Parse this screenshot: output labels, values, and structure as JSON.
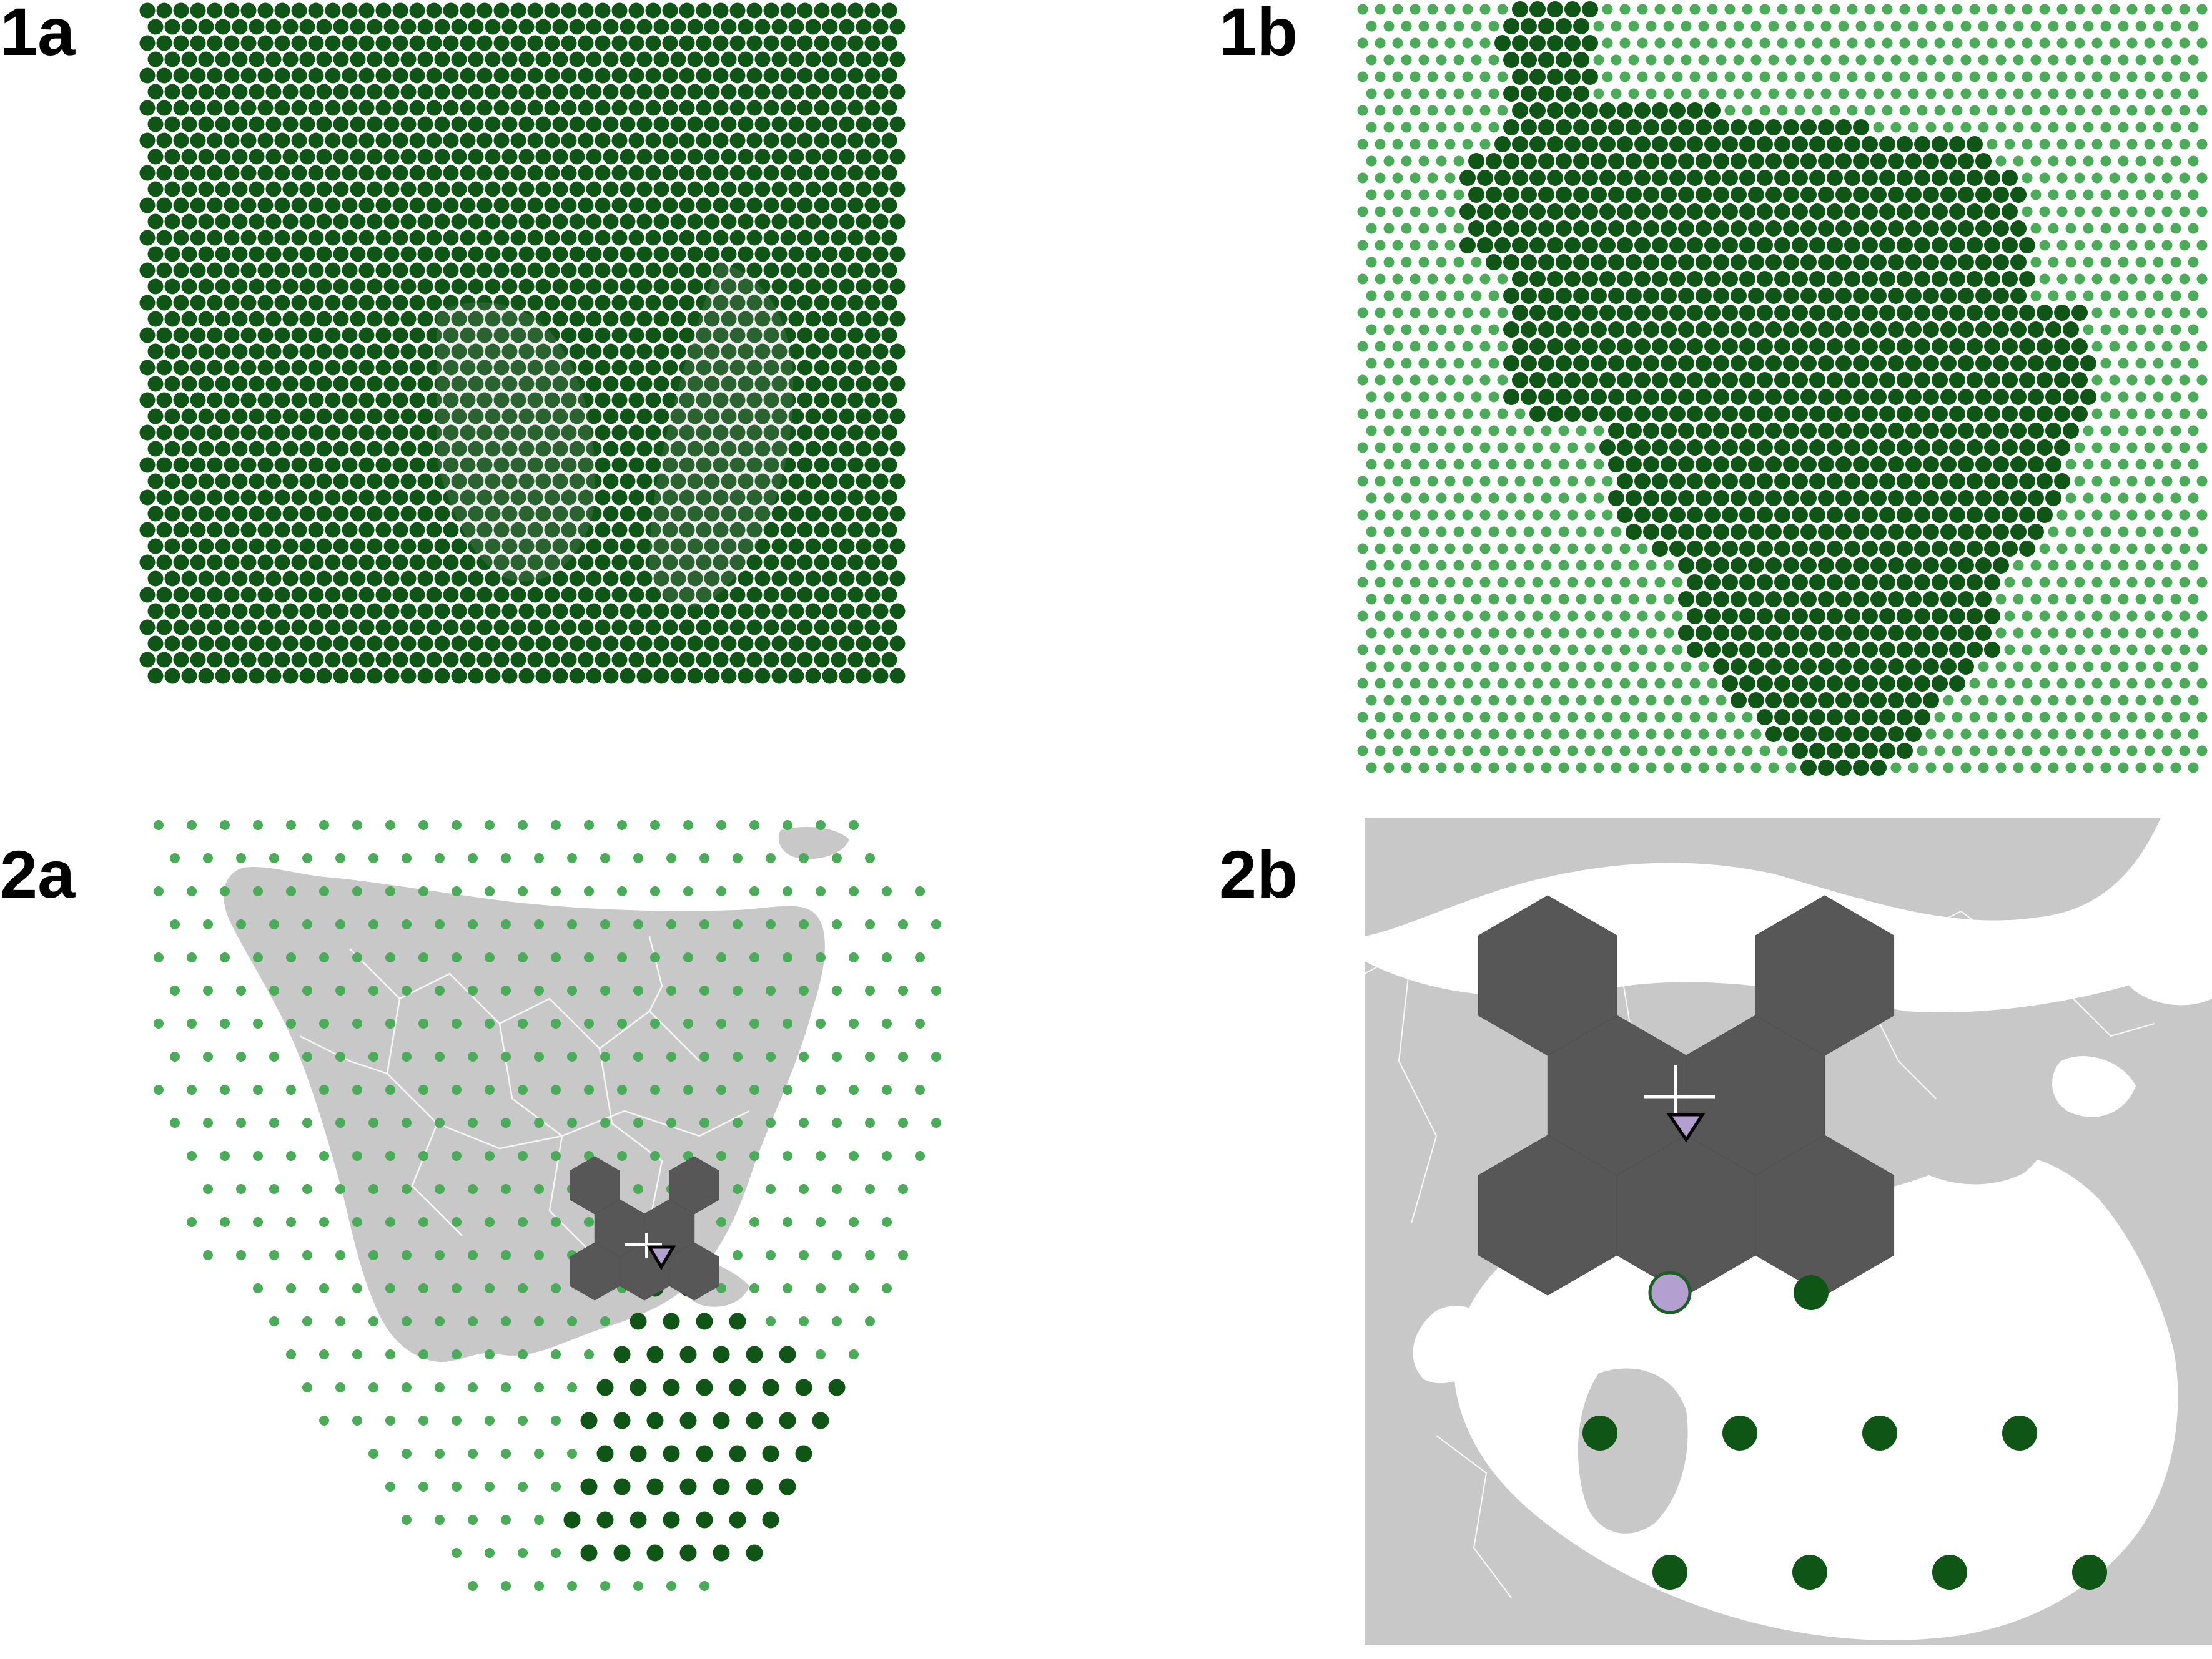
{
  "panels": [
    {
      "id": "1a",
      "label": "1a"
    },
    {
      "id": "1b",
      "label": "1b"
    },
    {
      "id": "2a",
      "label": "2a"
    },
    {
      "id": "2b",
      "label": "2b"
    }
  ],
  "colors": {
    "dark_green": "#0f5516",
    "light_green": "#4aab58",
    "land_gray": "#c8c8c8",
    "hexagon_gray": "#575757",
    "boundary_white": "#ffffff",
    "marker_lilac": "#b39fd0",
    "marker_outline": "#000000",
    "circle_outline": "#1d5e25"
  },
  "icons": {
    "origin_marker": "downward-triangle-icon",
    "crosshair": "crosshair-icon",
    "nearest_point": "circle-marker-icon"
  }
}
